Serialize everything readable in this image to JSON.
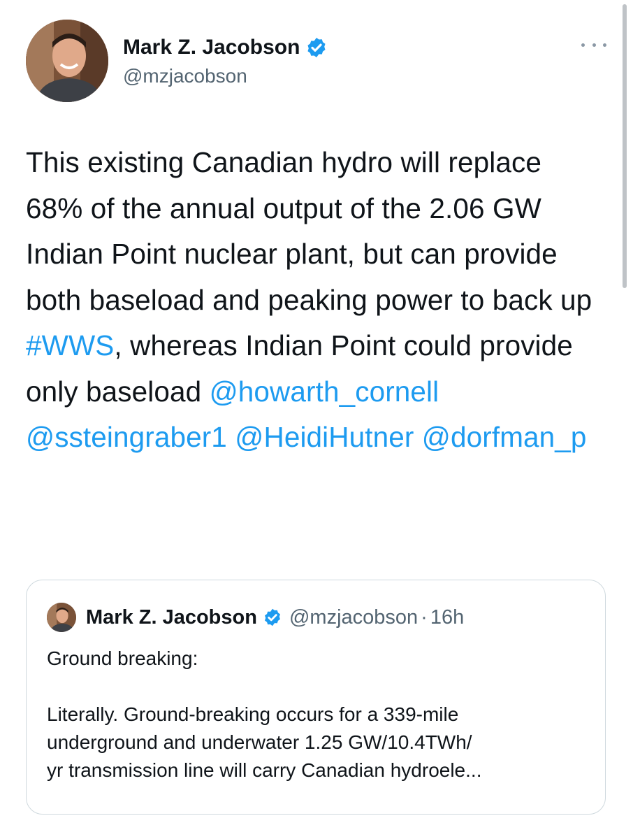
{
  "tweet": {
    "author": {
      "name": "Mark Z. Jacobson",
      "handle": "@mzjacobson",
      "verified_icon": "verified-badge-icon"
    },
    "text_segments": [
      {
        "type": "text",
        "value": "This existing Canadian hydro will replace 68% of the annual output of the 2.06 GW Indian Point nuclear plant, but can provide both baseload and peaking power to back up "
      },
      {
        "type": "hashtag",
        "value": "#WWS"
      },
      {
        "type": "text",
        "value": ", whereas Indian Point could provide only baseload "
      },
      {
        "type": "mention",
        "value": "@howarth_cornell"
      },
      {
        "type": "text",
        "value": " "
      },
      {
        "type": "mention",
        "value": "@ssteingraber1"
      },
      {
        "type": "text",
        "value": " "
      },
      {
        "type": "mention",
        "value": "@HeidiHutner"
      },
      {
        "type": "text",
        "value": " "
      },
      {
        "type": "mention",
        "value": "@dorfman_p"
      }
    ]
  },
  "quoted_tweet": {
    "author_name": "Mark Z. Jacobson",
    "handle": "@mzjacobson",
    "separator": "·",
    "time": "16h",
    "first_line": "Ground breaking:",
    "body_lines": [
      "Literally. Ground-breaking occurs for a 339-mile",
      "underground and underwater 1.25 GW/10.4TWh/",
      "yr transmission line will carry Canadian hydroele..."
    ]
  },
  "colors": {
    "link": "#1d9bf0",
    "verified": "#1d9bf0",
    "secondary_text": "#536471",
    "border": "#cfd9de"
  }
}
